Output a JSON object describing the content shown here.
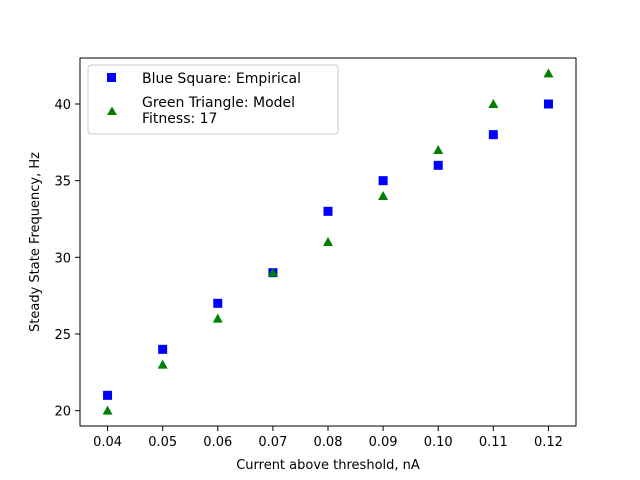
{
  "chart_data": {
    "type": "scatter",
    "title": "",
    "xlabel": "Current above threshold, nA",
    "ylabel": "Steady State Frequency, Hz",
    "xlim": [
      0.035,
      0.125
    ],
    "ylim": [
      19,
      43
    ],
    "x_ticks": [
      0.04,
      0.05,
      0.06,
      0.07,
      0.08,
      0.09,
      0.1,
      0.11,
      0.12
    ],
    "x_tick_labels": [
      "0.04",
      "0.05",
      "0.06",
      "0.07",
      "0.08",
      "0.09",
      "0.10",
      "0.11",
      "0.12"
    ],
    "y_ticks": [
      20,
      25,
      30,
      35,
      40
    ],
    "y_tick_labels": [
      "20",
      "25",
      "30",
      "35",
      "40"
    ],
    "grid": false,
    "legend_position": "top-left",
    "x": [
      0.04,
      0.05,
      0.06,
      0.07,
      0.08,
      0.09,
      0.1,
      0.11,
      0.12
    ],
    "series": [
      {
        "legend_label": "Blue Square: Empirical",
        "marker": "square",
        "color": "#0000ff",
        "values": [
          21,
          24,
          27,
          29,
          33,
          35,
          36,
          38,
          40
        ]
      },
      {
        "legend_label": "Green Triangle: Model",
        "legend_label_line2": "Fitness: 17",
        "marker": "triangle",
        "color": "#008000",
        "values": [
          20,
          23,
          26,
          29,
          31,
          34,
          37,
          40,
          42
        ]
      }
    ]
  }
}
